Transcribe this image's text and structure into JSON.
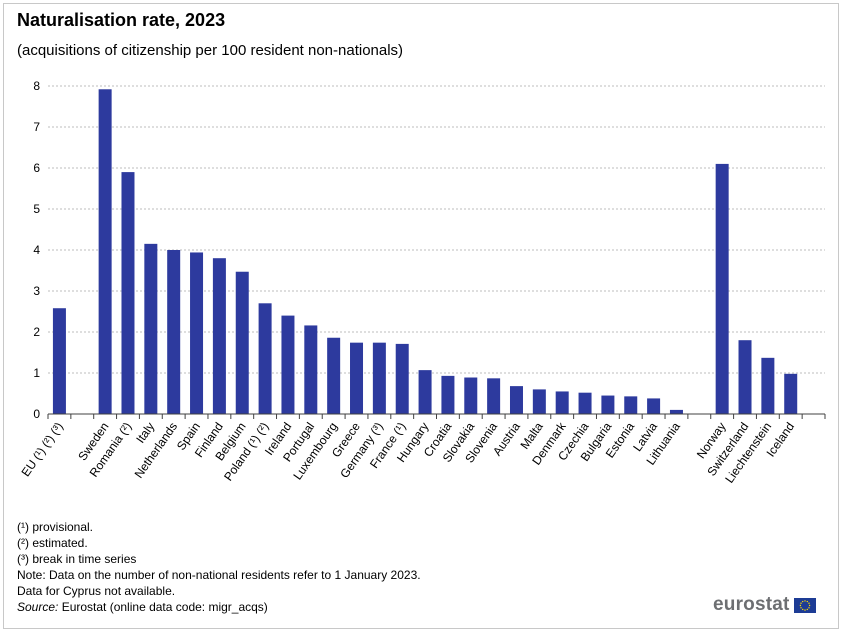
{
  "title": "Naturalisation rate, 2023",
  "subtitle": "(acquisitions of citizenship per 100 resident non-nationals)",
  "notes": [
    "(¹) provisional.",
    "(²) estimated.",
    "(³) break in time series",
    "Note: Data on the number of non-national  residents refer to 1 January 2023.",
    "Data for Cyprus not available."
  ],
  "source": {
    "label": "Source:",
    "text": " Eurostat (online data code: migr_acqs)"
  },
  "logo": {
    "text": "eurostat"
  },
  "colors": {
    "bar": "#2d3a9e",
    "grid": "#bdbdbd",
    "axis": "#404040",
    "flag": "#1d3c95",
    "flag_stars": "#ffdd00"
  },
  "chart_data": {
    "type": "bar",
    "title": "Naturalisation rate, 2023",
    "subtitle": "(acquisitions of citizenship per 100 resident non-nationals)",
    "xlabel": "",
    "ylabel": "",
    "ylim": [
      0,
      8
    ],
    "yticks": [
      0,
      1,
      2,
      3,
      4,
      5,
      6,
      7,
      8
    ],
    "grid": true,
    "categories": [
      "EU (¹) (²) (³)",
      "",
      "Sweden",
      "Romania (²)",
      "Italy",
      "Netherlands",
      "Spain",
      "Finland",
      "Belgium",
      "Poland (¹) (²)",
      "Ireland",
      "Portugal",
      "Luxembourg",
      "Greece",
      "Germany (³)",
      "France (¹)",
      "Hungary",
      "Croatia",
      "Slovakia",
      "Slovenia",
      "Austria",
      "Malta",
      "Denmark",
      "Czechia",
      "Bulgaria",
      "Estonia",
      "Latvia",
      "Lithuania",
      "",
      "Norway",
      "Switzerland",
      "Liechtenstein",
      "Iceland",
      ""
    ],
    "values": [
      2.58,
      null,
      7.92,
      5.9,
      4.15,
      4.0,
      3.94,
      3.8,
      3.47,
      2.7,
      2.4,
      2.16,
      1.86,
      1.74,
      1.74,
      1.71,
      1.07,
      0.93,
      0.89,
      0.87,
      0.68,
      0.6,
      0.55,
      0.52,
      0.45,
      0.43,
      0.38,
      0.1,
      null,
      6.1,
      1.8,
      1.37,
      0.98,
      null
    ]
  }
}
